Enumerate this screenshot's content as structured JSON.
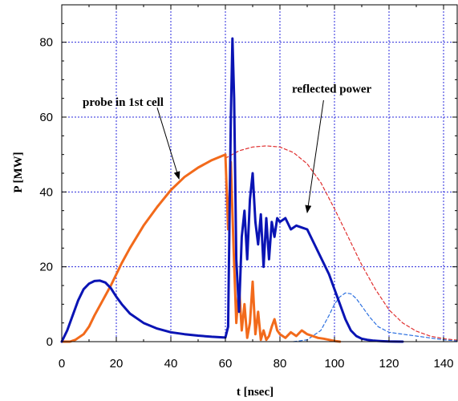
{
  "chart_data": {
    "type": "line",
    "xlabel": "t [nsec]",
    "ylabel": "P [MW]",
    "xlim": [
      0,
      145
    ],
    "ylim": [
      0,
      90
    ],
    "xticks": [
      0,
      20,
      40,
      60,
      80,
      100,
      120,
      140
    ],
    "yticks": [
      0,
      20,
      40,
      60,
      80
    ],
    "grid": true,
    "colors": {
      "blue": "#0a14b4",
      "orange": "#f26a1b",
      "red_dashed": "#e03030",
      "blue_dashed": "#2c70e0"
    },
    "series": [
      {
        "name": "reflected power",
        "style": "solid",
        "color": "#0a14b4",
        "x": [
          0,
          2,
          4,
          6,
          8,
          10,
          12,
          14,
          16,
          18,
          20,
          22,
          25,
          30,
          35,
          40,
          45,
          50,
          55,
          60,
          61,
          62,
          62.6,
          63.2,
          64,
          65,
          66,
          67,
          68,
          69,
          70,
          71,
          72,
          73,
          74,
          75,
          76,
          77,
          78,
          79,
          80,
          82,
          84,
          86,
          88,
          90,
          92,
          94,
          96,
          98,
          100,
          102,
          104,
          106,
          108,
          110,
          112,
          114,
          116,
          118,
          120,
          122,
          125
        ],
        "y": [
          0,
          3,
          7,
          11,
          14,
          15.5,
          16.2,
          16.3,
          15.8,
          14.3,
          12,
          10,
          7.5,
          5,
          3.5,
          2.5,
          2,
          1.6,
          1.3,
          1.1,
          4,
          60,
          81,
          65,
          22,
          8,
          28,
          35,
          22,
          38,
          45,
          32,
          26,
          34,
          20,
          33,
          22,
          32,
          28,
          33,
          32,
          33,
          30,
          31,
          30.5,
          30,
          27,
          24,
          21,
          18,
          14,
          10,
          6,
          3,
          1.5,
          0.8,
          0.5,
          0.3,
          0.2,
          0.1,
          0.05,
          0.02,
          0
        ]
      },
      {
        "name": "probe in 1st cell",
        "style": "solid",
        "color": "#f26a1b",
        "x": [
          0,
          3,
          5,
          8,
          10,
          12,
          15,
          18,
          20,
          22,
          25,
          30,
          35,
          40,
          45,
          50,
          55,
          60,
          61,
          62,
          63,
          64,
          65,
          66,
          67,
          68,
          69,
          70,
          71,
          72,
          73,
          74,
          75,
          76,
          77,
          78,
          79,
          80,
          82,
          84,
          86,
          88,
          90,
          92,
          94,
          96,
          98,
          100,
          102
        ],
        "y": [
          0,
          0,
          0.5,
          2,
          4,
          7,
          11,
          15,
          18,
          21,
          25,
          31,
          36,
          40.5,
          44,
          46.5,
          48.5,
          50,
          30,
          48,
          25,
          5,
          15,
          3,
          10,
          1,
          5,
          16,
          2,
          8,
          0.5,
          3,
          0.5,
          1.5,
          4,
          6,
          3,
          2,
          1,
          2.5,
          1.5,
          3,
          2,
          1.5,
          1,
          0.8,
          0.5,
          0.2,
          0
        ]
      },
      {
        "name": "",
        "style": "dashed",
        "color": "#e03030",
        "x": [
          60,
          65,
          70,
          75,
          80,
          85,
          90,
          95,
          100,
          105,
          110,
          115,
          120,
          125,
          130,
          135,
          140,
          145
        ],
        "y": [
          49,
          51,
          52,
          52.3,
          52,
          50.5,
          47.5,
          42.5,
          35.5,
          28,
          20.5,
          14,
          8.5,
          5,
          2.8,
          1.5,
          0.8,
          0.4
        ]
      },
      {
        "name": "",
        "style": "dashed",
        "color": "#2c70e0",
        "x": [
          85,
          90,
          95,
          98,
          100,
          102,
          104,
          106,
          108,
          110,
          113,
          116,
          120,
          125,
          130,
          135,
          140,
          145
        ],
        "y": [
          0,
          0.5,
          3,
          7,
          10,
          12,
          13,
          12.8,
          11.5,
          9.5,
          6.5,
          4,
          2.5,
          2,
          1.5,
          1,
          0.5,
          0.2
        ]
      }
    ],
    "annotations": [
      {
        "text": "probe in 1st cell",
        "arrow_from": [
          35,
          62.5
        ],
        "arrow_to": [
          43,
          43.5
        ]
      },
      {
        "text": "reflected power",
        "arrow_from": [
          96,
          64.5
        ],
        "arrow_to": [
          90,
          34.5
        ]
      }
    ]
  }
}
